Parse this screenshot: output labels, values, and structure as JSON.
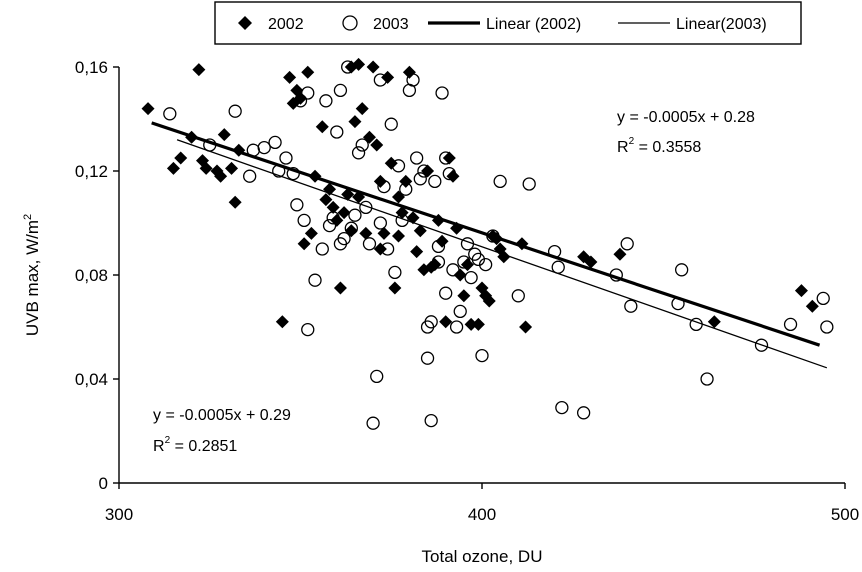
{
  "chart_data": {
    "type": "scatter",
    "xlabel": "Total ozone, DU",
    "ylabel_main": "UVB max, W/m",
    "ylabel_sup": "2",
    "xlim": [
      300,
      500
    ],
    "ylim": [
      0,
      0.16
    ],
    "x_ticks": [
      {
        "value": 300,
        "label": "300"
      },
      {
        "value": 400,
        "label": "400"
      },
      {
        "value": 500,
        "label": "500"
      }
    ],
    "y_ticks": [
      {
        "value": 0,
        "label": "0"
      },
      {
        "value": 0.04,
        "label": "0,04"
      },
      {
        "value": 0.08,
        "label": "0,08"
      },
      {
        "value": 0.12,
        "label": "0,12"
      },
      {
        "value": 0.16,
        "label": "0,16"
      }
    ],
    "legend": {
      "placement": "top",
      "items": [
        {
          "label": "2002",
          "marker": "diamond-filled"
        },
        {
          "label": "2003",
          "marker": "circle-open"
        },
        {
          "label": "Linear (2002)",
          "marker": "line-thick"
        },
        {
          "label": "Linear(2003)",
          "marker": "line-thin"
        }
      ]
    },
    "series": [
      {
        "name": "2002",
        "marker": "diamond-filled",
        "points": [
          [
            308,
            0.144
          ],
          [
            315,
            0.121
          ],
          [
            317,
            0.125
          ],
          [
            320,
            0.133
          ],
          [
            322,
            0.159
          ],
          [
            323,
            0.124
          ],
          [
            324,
            0.121
          ],
          [
            327,
            0.12
          ],
          [
            328,
            0.118
          ],
          [
            329,
            0.134
          ],
          [
            331,
            0.121
          ],
          [
            332,
            0.108
          ],
          [
            333,
            0.128
          ],
          [
            345,
            0.062
          ],
          [
            347,
            0.156
          ],
          [
            348,
            0.146
          ],
          [
            349,
            0.151
          ],
          [
            350,
            0.148
          ],
          [
            351,
            0.092
          ],
          [
            352,
            0.158
          ],
          [
            353,
            0.096
          ],
          [
            354,
            0.118
          ],
          [
            356,
            0.137
          ],
          [
            357,
            0.109
          ],
          [
            358,
            0.113
          ],
          [
            359,
            0.106
          ],
          [
            360,
            0.101
          ],
          [
            361,
            0.075
          ],
          [
            362,
            0.104
          ],
          [
            363,
            0.111
          ],
          [
            364,
            0.097
          ],
          [
            364,
            0.16
          ],
          [
            365,
            0.139
          ],
          [
            366,
            0.11
          ],
          [
            366,
            0.161
          ],
          [
            367,
            0.144
          ],
          [
            368,
            0.096
          ],
          [
            369,
            0.133
          ],
          [
            370,
            0.16
          ],
          [
            371,
            0.13
          ],
          [
            372,
            0.116
          ],
          [
            372,
            0.09
          ],
          [
            373,
            0.096
          ],
          [
            374,
            0.156
          ],
          [
            375,
            0.123
          ],
          [
            376,
            0.075
          ],
          [
            377,
            0.095
          ],
          [
            377,
            0.11
          ],
          [
            378,
            0.104
          ],
          [
            379,
            0.116
          ],
          [
            380,
            0.158
          ],
          [
            381,
            0.102
          ],
          [
            382,
            0.089
          ],
          [
            383,
            0.097
          ],
          [
            384,
            0.082
          ],
          [
            385,
            0.12
          ],
          [
            386,
            0.083
          ],
          [
            387,
            0.084
          ],
          [
            388,
            0.101
          ],
          [
            389,
            0.093
          ],
          [
            390,
            0.062
          ],
          [
            391,
            0.125
          ],
          [
            392,
            0.118
          ],
          [
            393,
            0.098
          ],
          [
            394,
            0.08
          ],
          [
            395,
            0.072
          ],
          [
            396,
            0.084
          ],
          [
            397,
            0.061
          ],
          [
            399,
            0.061
          ],
          [
            400,
            0.075
          ],
          [
            401,
            0.072
          ],
          [
            402,
            0.07
          ],
          [
            403,
            0.095
          ],
          [
            404,
            0.094
          ],
          [
            405,
            0.09
          ],
          [
            406,
            0.087
          ],
          [
            411,
            0.092
          ],
          [
            412,
            0.06
          ],
          [
            428,
            0.087
          ],
          [
            430,
            0.085
          ],
          [
            438,
            0.088
          ],
          [
            464,
            0.062
          ],
          [
            488,
            0.074
          ],
          [
            491,
            0.068
          ]
        ]
      },
      {
        "name": "2003",
        "marker": "circle-open",
        "points": [
          [
            314,
            0.142
          ],
          [
            325,
            0.13
          ],
          [
            332,
            0.143
          ],
          [
            336,
            0.118
          ],
          [
            337,
            0.128
          ],
          [
            340,
            0.129
          ],
          [
            343,
            0.131
          ],
          [
            344,
            0.12
          ],
          [
            346,
            0.125
          ],
          [
            348,
            0.119
          ],
          [
            349,
            0.107
          ],
          [
            350,
            0.147
          ],
          [
            351,
            0.101
          ],
          [
            352,
            0.059
          ],
          [
            352,
            0.15
          ],
          [
            354,
            0.078
          ],
          [
            356,
            0.09
          ],
          [
            357,
            0.147
          ],
          [
            358,
            0.099
          ],
          [
            359,
            0.102
          ],
          [
            360,
            0.135
          ],
          [
            361,
            0.092
          ],
          [
            361,
            0.151
          ],
          [
            362,
            0.094
          ],
          [
            363,
            0.16
          ],
          [
            364,
            0.098
          ],
          [
            365,
            0.103
          ],
          [
            366,
            0.127
          ],
          [
            367,
            0.13
          ],
          [
            368,
            0.106
          ],
          [
            369,
            0.092
          ],
          [
            370,
            0.023
          ],
          [
            371,
            0.041
          ],
          [
            372,
            0.155
          ],
          [
            372,
            0.1
          ],
          [
            373,
            0.114
          ],
          [
            374,
            0.09
          ],
          [
            375,
            0.138
          ],
          [
            376,
            0.081
          ],
          [
            377,
            0.122
          ],
          [
            378,
            0.101
          ],
          [
            379,
            0.113
          ],
          [
            380,
            0.151
          ],
          [
            381,
            0.155
          ],
          [
            382,
            0.125
          ],
          [
            383,
            0.117
          ],
          [
            384,
            0.12
          ],
          [
            385,
            0.06
          ],
          [
            385,
            0.048
          ],
          [
            386,
            0.062
          ],
          [
            386,
            0.024
          ],
          [
            387,
            0.116
          ],
          [
            388,
            0.091
          ],
          [
            388,
            0.085
          ],
          [
            389,
            0.15
          ],
          [
            390,
            0.125
          ],
          [
            390,
            0.073
          ],
          [
            391,
            0.119
          ],
          [
            392,
            0.082
          ],
          [
            393,
            0.06
          ],
          [
            394,
            0.066
          ],
          [
            395,
            0.085
          ],
          [
            396,
            0.092
          ],
          [
            397,
            0.079
          ],
          [
            398,
            0.088
          ],
          [
            399,
            0.086
          ],
          [
            400,
            0.049
          ],
          [
            401,
            0.084
          ],
          [
            403,
            0.095
          ],
          [
            405,
            0.116
          ],
          [
            410,
            0.072
          ],
          [
            413,
            0.115
          ],
          [
            420,
            0.089
          ],
          [
            421,
            0.083
          ],
          [
            422,
            0.029
          ],
          [
            428,
            0.027
          ],
          [
            437,
            0.08
          ],
          [
            440,
            0.092
          ],
          [
            441,
            0.068
          ],
          [
            454,
            0.069
          ],
          [
            455,
            0.082
          ],
          [
            459,
            0.061
          ],
          [
            462,
            0.04
          ],
          [
            477,
            0.053
          ],
          [
            485,
            0.061
          ],
          [
            494,
            0.071
          ],
          [
            495,
            0.06
          ]
        ]
      }
    ],
    "trendlines": [
      {
        "name": "Linear (2002)",
        "style": "thick",
        "x_range": [
          309,
          493
        ],
        "y_range": [
          0.1385,
          0.053
        ]
      },
      {
        "name": "Linear(2003)",
        "style": "thin",
        "x_range": [
          316,
          495
        ],
        "y_range": [
          0.132,
          0.0443
        ]
      }
    ],
    "annotations": {
      "eq_2002": {
        "line1": "y = -0.0005x + 0.28",
        "r2_prefix": "R",
        "r2_sup": "2",
        "r2_value": " = 0.3558"
      },
      "eq_2003": {
        "line1": "y = -0.0005x + 0.29",
        "r2_prefix": "R",
        "r2_sup": "2",
        "r2_value": " = 0.2851"
      }
    }
  }
}
